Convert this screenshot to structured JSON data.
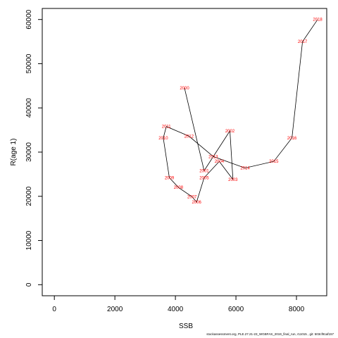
{
  "chart_data": {
    "type": "line",
    "xlabel": "SSB",
    "ylabel": "R(age 1)",
    "xlim": [
      -400,
      9000
    ],
    "ylim": [
      -2500,
      62500
    ],
    "x_ticks": [
      0,
      2000,
      4000,
      6000,
      8000
    ],
    "y_ticks": [
      0,
      10000,
      20000,
      30000,
      40000,
      50000,
      60000
    ],
    "line_color": "#000000",
    "label_color": "#ff0000",
    "points": [
      {
        "year": "2000",
        "x": 4300,
        "y": 44500
      },
      {
        "year": "2001",
        "x": 4950,
        "y": 25800
      },
      {
        "year": "2002",
        "x": 5800,
        "y": 34800
      },
      {
        "year": "2003",
        "x": 5900,
        "y": 23800
      },
      {
        "year": "2004",
        "x": 5450,
        "y": 27900
      },
      {
        "year": "2005",
        "x": 4950,
        "y": 24200
      },
      {
        "year": "2006",
        "x": 4700,
        "y": 18700
      },
      {
        "year": "2007",
        "x": 4550,
        "y": 19900
      },
      {
        "year": "2008",
        "x": 4100,
        "y": 22000
      },
      {
        "year": "2009",
        "x": 3800,
        "y": 24200
      },
      {
        "year": "2010",
        "x": 3600,
        "y": 33200
      },
      {
        "year": "2011",
        "x": 3700,
        "y": 35800
      },
      {
        "year": "2012",
        "x": 4450,
        "y": 33600
      },
      {
        "year": "2013",
        "x": 5250,
        "y": 29000
      },
      {
        "year": "2014",
        "x": 6300,
        "y": 26400
      },
      {
        "year": "2015",
        "x": 7250,
        "y": 27900
      },
      {
        "year": "2016",
        "x": 7850,
        "y": 33200
      },
      {
        "year": "2017",
        "x": 8200,
        "y": 55000
      },
      {
        "year": "2018",
        "x": 8700,
        "y": 60000
      }
    ]
  },
  "footer": {
    "text": "stockassessment.org,  PLE.27.21-23_WGBFAS_2019_final_run,  r11015 ,  git: 503cf91af157"
  }
}
